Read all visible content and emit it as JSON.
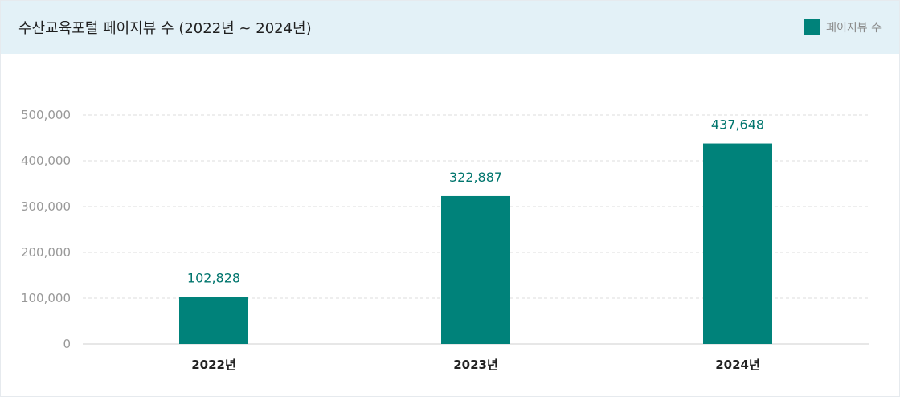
{
  "header": {
    "title": "수산교육포털 페이지뷰 수 (2022년 ~ 2024년)",
    "legend_label": "페이지뷰 수"
  },
  "colors": {
    "bar": "#00827a",
    "data_label": "#00756d",
    "header_bg": "#e3f1f7",
    "grid": "#dcdcdc"
  },
  "chart_data": {
    "type": "bar",
    "title": "수산교육포털 페이지뷰 수 (2022년 ~ 2024년)",
    "categories": [
      "2022년",
      "2023년",
      "2024년"
    ],
    "series": [
      {
        "name": "페이지뷰 수",
        "values": [
          102828,
          322887,
          437648
        ]
      }
    ],
    "data_labels": [
      "102,828",
      "322,887",
      "437,648"
    ],
    "y_ticks": [
      0,
      100000,
      200000,
      300000,
      400000,
      500000
    ],
    "y_tick_labels": [
      "0",
      "100,000",
      "200,000",
      "300,000",
      "400,000",
      "500,000"
    ],
    "ylim": [
      0,
      500000
    ],
    "grid": true,
    "legend_position": "top-right"
  }
}
